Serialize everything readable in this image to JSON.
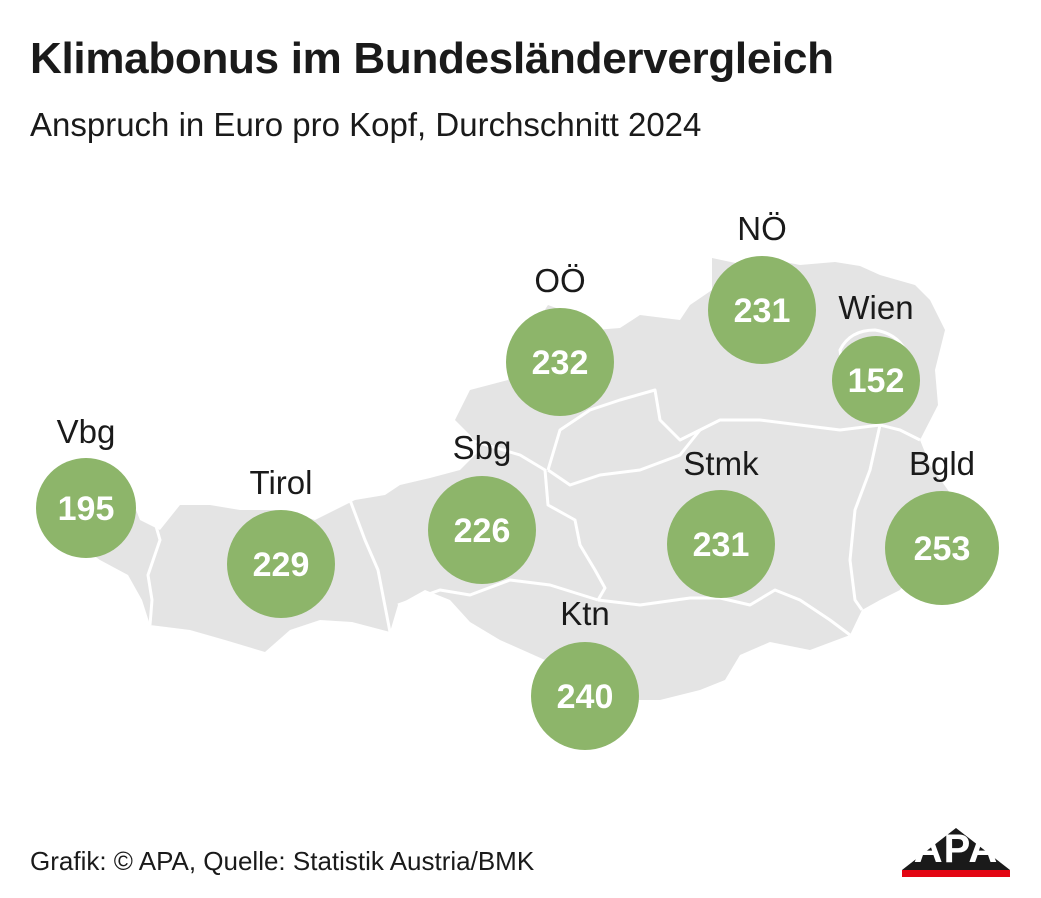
{
  "header": {
    "title": "Klimabonus im Bundesländervergleich",
    "subtitle": "Anspruch in Euro pro Kopf, Durchschnitt 2024"
  },
  "states": [
    {
      "key": "vbg",
      "label": "Vbg",
      "value": "195"
    },
    {
      "key": "tirol",
      "label": "Tirol",
      "value": "229"
    },
    {
      "key": "sbg",
      "label": "Sbg",
      "value": "226"
    },
    {
      "key": "ooe",
      "label": "OÖ",
      "value": "232"
    },
    {
      "key": "noe",
      "label": "NÖ",
      "value": "231"
    },
    {
      "key": "wien",
      "label": "Wien",
      "value": "152"
    },
    {
      "key": "stmk",
      "label": "Stmk",
      "value": "231"
    },
    {
      "key": "bgld",
      "label": "Bgld",
      "value": "253"
    },
    {
      "key": "ktn",
      "label": "Ktn",
      "value": "240"
    }
  ],
  "footer": {
    "source": "Grafik: © APA, Quelle: Statistik Austria/BMK",
    "logo_text": "APA"
  },
  "colors": {
    "bubble": "#8db56a",
    "land": "#e4e4e4",
    "border": "#ffffff",
    "logo_black": "#1a1a1a",
    "logo_red": "#e30613"
  }
}
